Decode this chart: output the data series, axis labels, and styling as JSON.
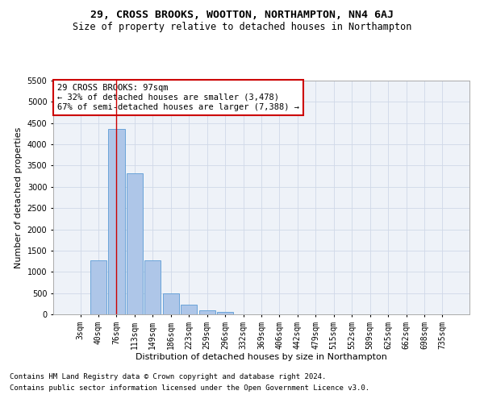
{
  "title": "29, CROSS BROOKS, WOOTTON, NORTHAMPTON, NN4 6AJ",
  "subtitle": "Size of property relative to detached houses in Northampton",
  "xlabel": "Distribution of detached houses by size in Northampton",
  "ylabel": "Number of detached properties",
  "footer_line1": "Contains HM Land Registry data © Crown copyright and database right 2024.",
  "footer_line2": "Contains public sector information licensed under the Open Government Licence v3.0.",
  "bar_labels": [
    "3sqm",
    "40sqm",
    "76sqm",
    "113sqm",
    "149sqm",
    "186sqm",
    "223sqm",
    "259sqm",
    "296sqm",
    "332sqm",
    "369sqm",
    "406sqm",
    "442sqm",
    "479sqm",
    "515sqm",
    "552sqm",
    "589sqm",
    "625sqm",
    "662sqm",
    "698sqm",
    "735sqm"
  ],
  "bar_values": [
    0,
    1270,
    4360,
    3320,
    1265,
    490,
    225,
    95,
    55,
    0,
    0,
    0,
    0,
    0,
    0,
    0,
    0,
    0,
    0,
    0,
    0
  ],
  "bar_color": "#aec6e8",
  "bar_edge_color": "#5b9bd5",
  "annotation_box_text": "29 CROSS BROOKS: 97sqm\n← 32% of detached houses are smaller (3,478)\n67% of semi-detached houses are larger (7,388) →",
  "annotation_box_color": "#cc0000",
  "vline_x_index": 2,
  "vline_color": "#cc0000",
  "ylim": [
    0,
    5500
  ],
  "yticks": [
    0,
    500,
    1000,
    1500,
    2000,
    2500,
    3000,
    3500,
    4000,
    4500,
    5000,
    5500
  ],
  "grid_color": "#d0d8e8",
  "bg_color": "#eef2f8",
  "title_fontsize": 9.5,
  "subtitle_fontsize": 8.5,
  "axis_label_fontsize": 8,
  "tick_fontsize": 7,
  "annotation_fontsize": 7.5,
  "footer_fontsize": 6.5
}
